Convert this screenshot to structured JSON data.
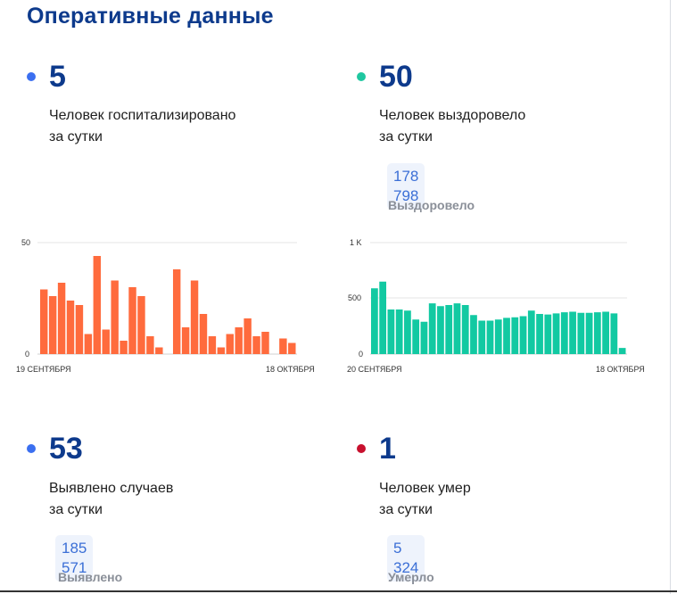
{
  "page": {
    "title": "Оперативные данные"
  },
  "stats": {
    "hospitalized": {
      "value": "5",
      "line1": "Человек госпитализировано",
      "line2": "за сутки",
      "color": "#3b6ff0"
    },
    "recovered": {
      "value": "50",
      "line1": "Человек выздоровело",
      "line2": "за сутки",
      "total": "178 798",
      "total_label": "Выздоровело",
      "color": "#1fc7a0"
    },
    "cases": {
      "value": "53",
      "line1": "Выявлено случаев",
      "line2": "за сутки",
      "total": "185 571",
      "total_label": "Выявлено",
      "color": "#3b6ff0"
    },
    "deaths": {
      "value": "1",
      "line1": "Человек умер",
      "line2": "за сутки",
      "total": "5 324",
      "total_label": "Умерло",
      "color": "#c8102e"
    }
  },
  "chart_data": [
    {
      "type": "bar",
      "color": "#ff6b3d",
      "x_start_label": "19 СЕНТЯБРЯ",
      "x_end_label": "18 ОКТЯБРЯ",
      "y_ticks": [
        "0",
        "50"
      ],
      "ylim": [
        0,
        50
      ],
      "values": [
        29,
        26,
        32,
        24,
        22,
        9,
        44,
        11,
        33,
        6,
        30,
        26,
        8,
        3,
        null,
        38,
        12,
        33,
        18,
        8,
        3,
        9,
        12,
        16,
        8,
        10,
        null,
        7,
        5
      ]
    },
    {
      "type": "bar",
      "color": "#12c9a2",
      "x_start_label": "20 СЕНТЯБРЯ",
      "x_end_label": "18 ОКТЯБРЯ",
      "y_ticks": [
        "0",
        "500",
        "1 K"
      ],
      "ylim": [
        0,
        1000
      ],
      "values": [
        590,
        650,
        400,
        400,
        390,
        310,
        290,
        455,
        430,
        440,
        455,
        440,
        350,
        300,
        300,
        310,
        325,
        330,
        340,
        390,
        360,
        355,
        365,
        375,
        380,
        370,
        370,
        375,
        380,
        365,
        55
      ]
    }
  ]
}
